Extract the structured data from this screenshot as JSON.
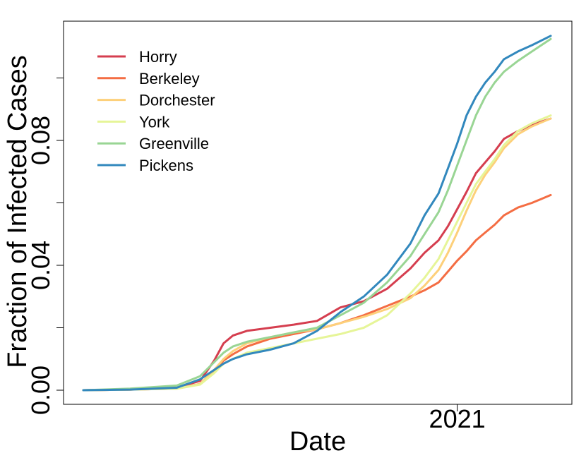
{
  "chart_data": {
    "type": "line",
    "xlabel": "Date",
    "ylabel": "Fraction of Infected Cases",
    "xlim": [
      0,
      1
    ],
    "ylim": [
      -0.0009,
      0.12
    ],
    "x_ticks": [
      {
        "value": 0.8,
        "label": "2021"
      }
    ],
    "y_ticks": [
      {
        "value": 0.0,
        "label": "0.00"
      },
      {
        "value": 0.02,
        "label": ""
      },
      {
        "value": 0.04,
        "label": "0.04"
      },
      {
        "value": 0.06,
        "label": ""
      },
      {
        "value": 0.08,
        "label": "0.08"
      },
      {
        "value": 0.1,
        "label": ""
      }
    ],
    "grid": false,
    "legend_position": "top-left",
    "x": [
      0.0,
      0.1,
      0.2,
      0.25,
      0.28,
      0.3,
      0.32,
      0.35,
      0.4,
      0.45,
      0.5,
      0.55,
      0.6,
      0.65,
      0.7,
      0.73,
      0.76,
      0.78,
      0.8,
      0.82,
      0.84,
      0.86,
      0.88,
      0.9,
      0.93,
      0.96,
      1.0
    ],
    "series": [
      {
        "name": "Horry",
        "color": "#d53e4f",
        "values": [
          0.0,
          0.0002,
          0.0008,
          0.003,
          0.0095,
          0.015,
          0.0175,
          0.019,
          0.02,
          0.021,
          0.0222,
          0.0265,
          0.0285,
          0.0325,
          0.039,
          0.044,
          0.048,
          0.0525,
          0.058,
          0.0635,
          0.0695,
          0.073,
          0.0765,
          0.0805,
          0.083,
          0.085,
          0.087
        ]
      },
      {
        "name": "Berkeley",
        "color": "#f46d43",
        "values": [
          0.0,
          0.0002,
          0.0005,
          0.002,
          0.006,
          0.0095,
          0.0115,
          0.014,
          0.0165,
          0.018,
          0.0195,
          0.0215,
          0.024,
          0.027,
          0.03,
          0.032,
          0.0345,
          0.038,
          0.0415,
          0.0445,
          0.048,
          0.0505,
          0.053,
          0.056,
          0.0585,
          0.06,
          0.0625
        ]
      },
      {
        "name": "Dorchester",
        "color": "#fdd07a",
        "values": [
          0.0,
          0.0002,
          0.0005,
          0.002,
          0.0065,
          0.01,
          0.0125,
          0.015,
          0.017,
          0.0185,
          0.0195,
          0.0215,
          0.0235,
          0.026,
          0.0295,
          0.0335,
          0.0385,
          0.044,
          0.0505,
          0.0575,
          0.064,
          0.069,
          0.073,
          0.0775,
          0.082,
          0.0845,
          0.087
        ]
      },
      {
        "name": "York",
        "color": "#e6f598",
        "values": [
          0.0,
          0.0002,
          0.0005,
          0.0018,
          0.0055,
          0.0085,
          0.01,
          0.012,
          0.0135,
          0.015,
          0.0165,
          0.018,
          0.02,
          0.024,
          0.031,
          0.036,
          0.042,
          0.048,
          0.054,
          0.06,
          0.066,
          0.07,
          0.074,
          0.0785,
          0.083,
          0.0855,
          0.088
        ]
      },
      {
        "name": "Greenville",
        "color": "#99d594",
        "values": [
          0.0,
          0.0005,
          0.0015,
          0.0045,
          0.009,
          0.012,
          0.014,
          0.0155,
          0.017,
          0.0185,
          0.02,
          0.024,
          0.028,
          0.0345,
          0.043,
          0.05,
          0.057,
          0.064,
          0.072,
          0.08,
          0.088,
          0.094,
          0.0985,
          0.102,
          0.1055,
          0.1085,
          0.1125
        ]
      },
      {
        "name": "Pickens",
        "color": "#3288bd",
        "values": [
          0.0,
          0.0002,
          0.0008,
          0.0035,
          0.0065,
          0.0085,
          0.01,
          0.0115,
          0.013,
          0.015,
          0.019,
          0.025,
          0.03,
          0.037,
          0.047,
          0.056,
          0.063,
          0.071,
          0.079,
          0.088,
          0.094,
          0.0985,
          0.102,
          0.106,
          0.1085,
          0.1105,
          0.1135
        ]
      }
    ]
  }
}
